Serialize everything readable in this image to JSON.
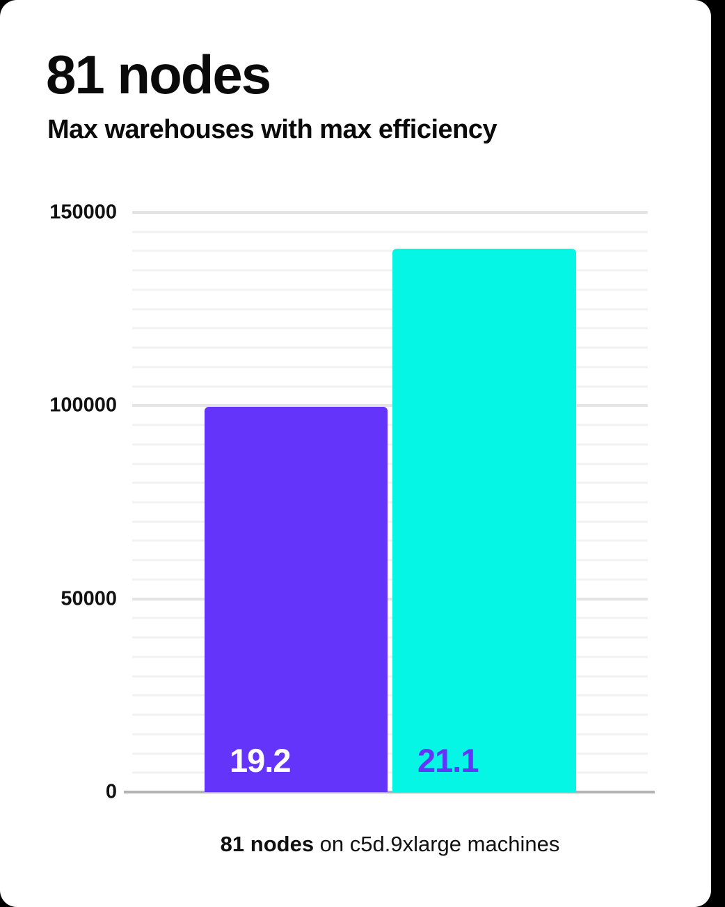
{
  "page": {
    "background_color": "#000000",
    "card_color": "#ffffff"
  },
  "header": {
    "title": "81 nodes",
    "subtitle": "Max warehouses with max efficiency"
  },
  "caption": {
    "bold": "81 nodes",
    "rest": " on c5d.9xlarge machines"
  },
  "chart_data": {
    "type": "bar",
    "title": "81 nodes",
    "subtitle": "Max warehouses with max efficiency",
    "categories": [
      "19.2",
      "21.1"
    ],
    "values": [
      99700,
      140600
    ],
    "bar_labels": [
      "19.2",
      "21.1"
    ],
    "bar_colors": [
      "#6434fb",
      "#06f6e6"
    ],
    "bar_label_colors": [
      "#ffffff",
      "#6434fb"
    ],
    "ylim": [
      0,
      150000
    ],
    "yticks": [
      0,
      50000,
      100000,
      150000
    ],
    "ytick_labels": [
      "0",
      "50000",
      "100000",
      "150000"
    ],
    "minor_grid_step": 5000,
    "major_grid_step": 50000,
    "grid": true,
    "legend": false,
    "xlabel": "",
    "ylabel": "",
    "axis_color": "#b3b3b3",
    "minor_grid_color": "#f2f2f2",
    "major_grid_color": "#e4e4e4",
    "caption": "81 nodes on c5d.9xlarge machines"
  }
}
